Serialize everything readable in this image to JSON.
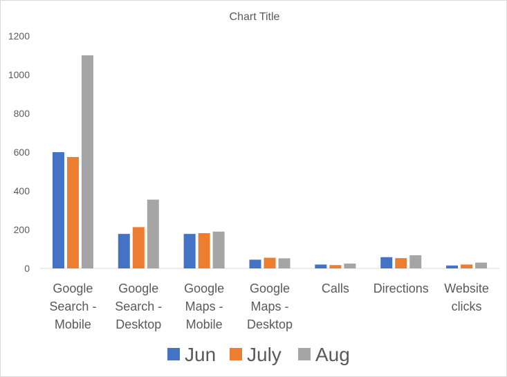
{
  "chart_data": {
    "type": "bar",
    "title": "Chart Title",
    "xlabel": "",
    "ylabel": "",
    "ylim": [
      0,
      1200
    ],
    "yticks": [
      0,
      200,
      400,
      600,
      800,
      1000,
      1200
    ],
    "grid": false,
    "legend_position": "bottom",
    "categories": [
      [
        "Google",
        "Search -",
        "Mobile"
      ],
      [
        "Google",
        "Search -",
        "Desktop"
      ],
      [
        "Google",
        "Maps -",
        "Mobile"
      ],
      [
        "Google",
        "Maps -",
        "Desktop"
      ],
      [
        "Calls"
      ],
      [
        "Directions"
      ],
      [
        "Website",
        "clicks"
      ]
    ],
    "series": [
      {
        "name": "Jun",
        "color": "#4472c4",
        "values": [
          600,
          178,
          178,
          45,
          20,
          58,
          15
        ]
      },
      {
        "name": "July",
        "color": "#ed7d31",
        "values": [
          575,
          213,
          182,
          55,
          17,
          53,
          20
        ]
      },
      {
        "name": "Aug",
        "color": "#a5a5a5",
        "values": [
          1100,
          355,
          190,
          52,
          25,
          68,
          30
        ]
      }
    ]
  }
}
